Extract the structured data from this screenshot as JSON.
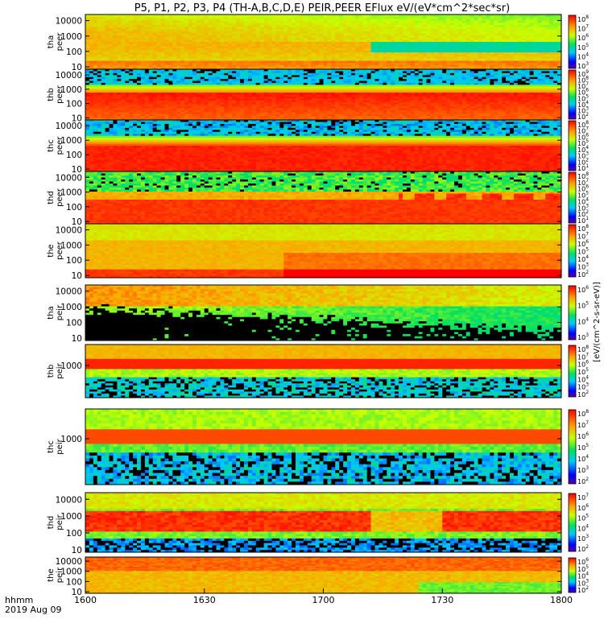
{
  "chart_data": {
    "type": "heatmap",
    "title": "P5, P1, P2, P3, P4 (TH-A,B,C,D,E) PEIR,PEER EFlux eV/(eV*cm^2*sec*sr)",
    "time_label_1": "hhmm",
    "time_label_2": "2019 Aug 09",
    "x_ticks": [
      "1600",
      "1630",
      "1700",
      "1730",
      "1800"
    ],
    "xlim": [
      0,
      120
    ],
    "colorbar_unit": "[eV/(cm^2-s-sr-eV)]",
    "panels": [
      {
        "probe": "tha",
        "species": "peer",
        "y_ticks": [
          "10000",
          "1000",
          "100",
          "10"
        ],
        "colorbar_ticks": [
          "10^8",
          "10^7",
          "10^6",
          "10^5",
          "10^4",
          "10^3"
        ],
        "yscale": "log",
        "ylim": [
          7,
          25000
        ]
      },
      {
        "probe": "thb",
        "species": "peer",
        "y_ticks": [
          "10000",
          "1000",
          "100",
          "10"
        ],
        "colorbar_ticks": [
          "10^9",
          "10^8",
          "10^7",
          "10^6",
          "10^5",
          "10^4",
          "10^3",
          "10^2"
        ],
        "yscale": "log",
        "ylim": [
          7,
          25000
        ]
      },
      {
        "probe": "thc",
        "species": "peer",
        "y_ticks": [
          "10000",
          "1000",
          "100",
          "10"
        ],
        "colorbar_ticks": [
          "10^8",
          "10^7",
          "10^6",
          "10^5",
          "10^4",
          "10^3",
          "10^2",
          "10^1"
        ],
        "yscale": "log",
        "ylim": [
          7,
          25000
        ]
      },
      {
        "probe": "thd",
        "species": "peer",
        "y_ticks": [
          "10000",
          "1000",
          "100",
          "10"
        ],
        "colorbar_ticks": [
          "10^8",
          "10^7",
          "10^6",
          "10^5",
          "10^4",
          "10^3",
          "10^2",
          "10^1"
        ],
        "yscale": "log",
        "ylim": [
          7,
          25000
        ]
      },
      {
        "probe": "the",
        "species": "peer",
        "y_ticks": [
          "10000",
          "1000",
          "100",
          "10"
        ],
        "colorbar_ticks": [
          "10^8",
          "10^7",
          "10^6",
          "10^5",
          "10^4",
          "10^3",
          "10^2"
        ],
        "yscale": "log",
        "ylim": [
          7,
          25000
        ]
      },
      {
        "probe": "tha",
        "species": "peir",
        "y_ticks": [
          "10000",
          "1000",
          "100",
          "10"
        ],
        "colorbar_ticks": [
          "10^6",
          "10^5",
          "10^4",
          "10^3"
        ],
        "yscale": "log",
        "ylim": [
          7,
          25000
        ]
      },
      {
        "probe": "thb",
        "species": "peir",
        "y_ticks": [
          "1000"
        ],
        "colorbar_ticks": [
          "10^8",
          "10^7",
          "10^6",
          "10^5",
          "10^4",
          "10^3",
          "10^2"
        ],
        "yscale": "log",
        "ylim": [
          7,
          25000
        ]
      },
      {
        "probe": "thc",
        "species": "peir",
        "y_ticks": [
          "1000"
        ],
        "colorbar_ticks": [
          "10^8",
          "10^7",
          "10^6",
          "10^5",
          "10^4",
          "10^3",
          "10^2"
        ],
        "yscale": "log",
        "ylim": [
          7,
          25000
        ]
      },
      {
        "probe": "thd",
        "species": "peir",
        "y_ticks": [
          "10000",
          "1000",
          "100",
          "10"
        ],
        "colorbar_ticks": [
          "10^7",
          "10^6",
          "10^5",
          "10^4",
          "10^3",
          "10^2"
        ],
        "yscale": "log",
        "ylim": [
          7,
          25000
        ]
      },
      {
        "probe": "the",
        "species": "peir",
        "y_ticks": [
          "10000",
          "1000",
          "100",
          "10"
        ],
        "colorbar_ticks": [
          "10^6",
          "10^5",
          "10^4",
          "10^3",
          "10^2"
        ],
        "yscale": "log",
        "ylim": [
          7,
          25000
        ]
      }
    ]
  }
}
